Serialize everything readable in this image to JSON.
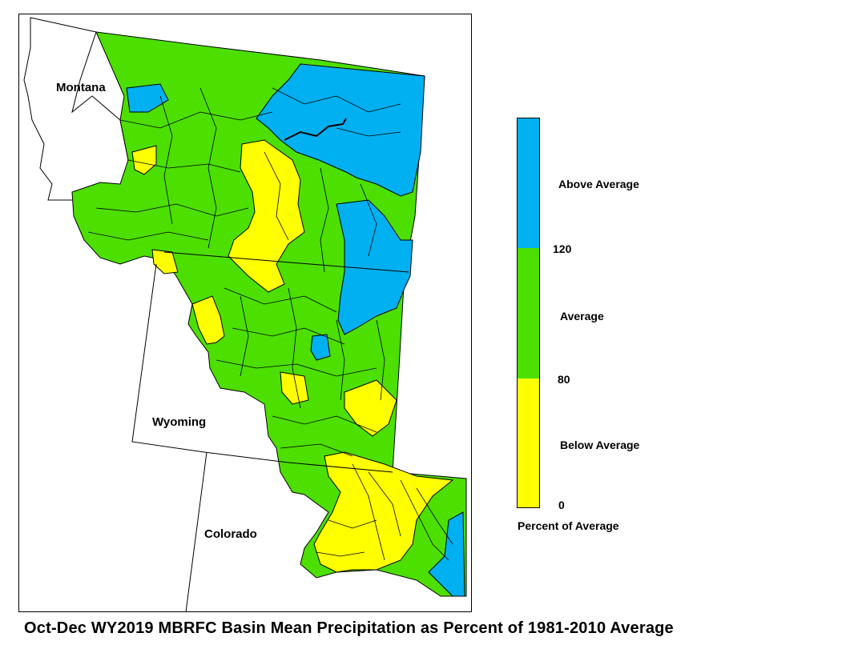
{
  "map": {
    "states": {
      "montana": "Montana",
      "wyoming": "Wyoming",
      "colorado": "Colorado"
    }
  },
  "legend": {
    "categories": [
      {
        "label": "Above Average",
        "color": "#00b0f0",
        "min": 120
      },
      {
        "label": "Average",
        "color": "#4cdf00",
        "min": 80,
        "max": 120
      },
      {
        "label": "Below Average",
        "color": "#ffff00",
        "min": 0,
        "max": 80
      }
    ],
    "ticks": [
      "120",
      "80",
      "0"
    ],
    "title": "Percent of Average"
  },
  "caption": "Oct-Dec WY2019 MBRFC Basin Mean Precipitation as Percent of 1981-2010 Average"
}
